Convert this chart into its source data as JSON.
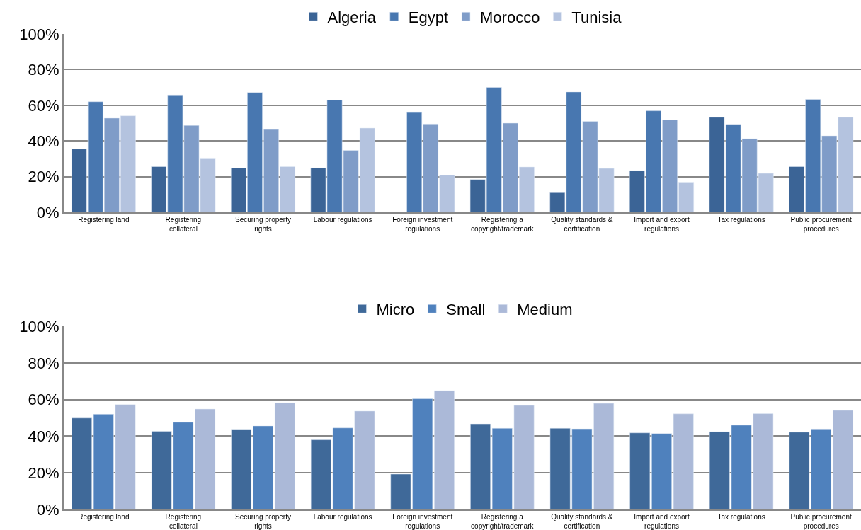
{
  "chart_data": [
    {
      "type": "bar",
      "categories": [
        "Registering land",
        "Registering collateral",
        "Securing property rights",
        "Labour regulations",
        "Foreign investment regulations",
        "Registering a copyright/trademark",
        "Quality standards & certification",
        "Import and export regulations",
        "Tax regulations",
        "Public procurement procedures"
      ],
      "series": [
        {
          "name": "Algeria",
          "color": "#3b6496",
          "values": [
            35.5,
            25.6,
            24.8,
            24.9,
            null,
            18.4,
            11,
            23.4,
            53.3,
            25.6
          ]
        },
        {
          "name": "Egypt",
          "color": "#4877b0",
          "values": [
            62,
            65.8,
            67.2,
            62.9,
            56.3,
            70,
            67.5,
            56.9,
            49.3,
            63.3
          ]
        },
        {
          "name": "Morocco",
          "color": "#7f9cc8",
          "values": [
            52.8,
            48.7,
            46.4,
            34.7,
            49.5,
            50,
            51,
            51.8,
            41.3,
            42.9
          ]
        },
        {
          "name": "Tunisia",
          "color": "#b4c3df",
          "values": [
            54.1,
            30.4,
            25.6,
            47.2,
            20.8,
            25.4,
            24.6,
            16.9,
            21.8,
            53.3
          ]
        }
      ],
      "ylim": [
        0,
        100
      ],
      "yticks": [
        {
          "value": 0,
          "label": "0%"
        },
        {
          "value": 20,
          "label": "20%"
        },
        {
          "value": 40,
          "label": "40%"
        },
        {
          "value": 60,
          "label": "60%"
        },
        {
          "value": 80,
          "label": "80%"
        },
        {
          "value": 100,
          "label": "100%"
        }
      ],
      "grid": "y",
      "legend": "top"
    },
    {
      "type": "bar",
      "categories": [
        "Registering land",
        "Registering collateral",
        "Securing property rights",
        "Labour regulations",
        "Foreign investment regulations",
        "Registering a copyright/trademark",
        "Quality standards & certification",
        "Import and export regulations",
        "Tax regulations",
        "Public procurement procedures"
      ],
      "series": [
        {
          "name": "Micro",
          "color": "#3f6999",
          "values": [
            49.9,
            42.7,
            43.7,
            38,
            19.3,
            46.7,
            44.3,
            41.8,
            42.5,
            42.2
          ]
        },
        {
          "name": "Small",
          "color": "#4f81bd",
          "values": [
            52,
            47.6,
            45.6,
            44.5,
            60.4,
            44.3,
            44,
            41.4,
            46,
            43.9
          ]
        },
        {
          "name": "Medium",
          "color": "#abb9d8",
          "values": [
            57.2,
            54.8,
            58.2,
            53.7,
            64.9,
            56.8,
            57.9,
            52.2,
            52.3,
            54.1
          ]
        }
      ],
      "ylim": [
        0,
        100
      ],
      "yticks": [
        {
          "value": 0,
          "label": "0%"
        },
        {
          "value": 20,
          "label": "20%"
        },
        {
          "value": 40,
          "label": "40%"
        },
        {
          "value": 60,
          "label": "60%"
        },
        {
          "value": 80,
          "label": "80%"
        },
        {
          "value": 100,
          "label": "100%"
        }
      ],
      "grid": "y",
      "legend": "top"
    }
  ]
}
